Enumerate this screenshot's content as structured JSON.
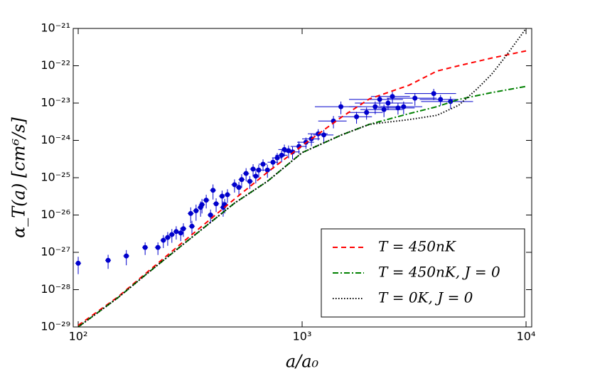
{
  "chart_data": {
    "type": "scatter",
    "xlabel": "a/a₀",
    "ylabel": "α_T(a) [cm⁶/s]",
    "xscale": "log",
    "yscale": "log",
    "xlim": [
      95,
      10600
    ],
    "ylim": [
      1e-29,
      1e-21
    ],
    "xticks": [
      {
        "value": 100,
        "label": "10²"
      },
      {
        "value": 1000,
        "label": "10³"
      },
      {
        "value": 10000,
        "label": "10⁴"
      }
    ],
    "yticks": [
      {
        "value": 1e-29,
        "label": "10⁻²⁹"
      },
      {
        "value": 1e-28,
        "label": "10⁻²⁸"
      },
      {
        "value": 1e-27,
        "label": "10⁻²⁷"
      },
      {
        "value": 1e-26,
        "label": "10⁻²⁶"
      },
      {
        "value": 1e-25,
        "label": "10⁻²⁵"
      },
      {
        "value": 1e-24,
        "label": "10⁻²⁴"
      },
      {
        "value": 1e-23,
        "label": "10⁻²³"
      },
      {
        "value": 1e-22,
        "label": "10⁻²²"
      },
      {
        "value": 1e-21,
        "label": "10⁻²¹"
      }
    ],
    "legend": "lower right",
    "series": [
      {
        "type": "scatter",
        "color": "#0000cc",
        "x": [
          100,
          136,
          164,
          199,
          227,
          240,
          251,
          262,
          274,
          287,
          295,
          318,
          322,
          336,
          352,
          357,
          373,
          390,
          400,
          413,
          439,
          444,
          451,
          464,
          499,
          522,
          537,
          562,
          584,
          604,
          621,
          640,
          669,
          700,
          741,
          774,
          810,
          833,
          870,
          906,
          968,
          1040,
          1100,
          1180,
          1250,
          1380,
          1490,
          1750,
          1940,
          2120,
          2220,
          2320,
          2420,
          2530,
          2680,
          2840,
          3190,
          3870,
          4150,
          4600
        ],
        "values": [
          5.1e-28,
          6.1e-28,
          8e-28,
          1.35e-27,
          1.35e-27,
          2.1e-27,
          2.5e-27,
          3e-27,
          3.6e-27,
          3.3e-27,
          4.3e-27,
          1.1e-26,
          5e-27,
          1.3e-26,
          1.6e-26,
          1.9e-26,
          2.5e-26,
          1e-26,
          4.6e-26,
          2e-26,
          3.2e-26,
          1.6e-26,
          1.9e-26,
          3.5e-26,
          6.5e-26,
          5.5e-26,
          8.9e-26,
          1.3e-25,
          8e-26,
          1.7e-25,
          1.1e-25,
          1.6e-25,
          2.3e-25,
          1.6e-25,
          2.6e-25,
          3.4e-25,
          4e-25,
          5.7e-25,
          5.3e-25,
          4.9e-25,
          6.9e-25,
          8.9e-25,
          1.1e-24,
          1.5e-24,
          1.4e-24,
          3.3e-24,
          8e-24,
          4.3e-24,
          5.6e-24,
          8e-24,
          1.25e-23,
          6.7e-24,
          1e-23,
          1.5e-23,
          7.4e-24,
          8e-24,
          1.35e-23,
          1.8e-23,
          1.25e-23,
          1.1e-23
        ],
        "xerr": [
          3,
          4,
          5,
          6,
          7,
          7,
          8,
          8,
          8,
          9,
          9,
          10,
          10,
          10,
          11,
          11,
          12,
          12,
          12,
          13,
          14,
          14,
          14,
          15,
          16,
          17,
          17,
          18,
          19,
          20,
          20,
          25,
          30,
          30,
          40,
          40,
          50,
          50,
          60,
          70,
          80,
          90,
          100,
          120,
          130,
          200,
          350,
          300,
          350,
          500,
          600,
          500,
          700,
          500,
          500,
          600,
          800,
          1000,
          800,
          1200
        ],
        "yerr": [
          2.5e-28,
          2.5e-28,
          3.5e-28,
          5e-28,
          5e-28,
          8e-28,
          1e-27,
          1.2e-27,
          1.4e-27,
          1.3e-27,
          1.7e-27,
          5e-27,
          2e-27,
          6e-27,
          7e-27,
          8e-27,
          1e-26,
          4e-27,
          2e-26,
          8e-27,
          1.3e-26,
          7e-27,
          8e-27,
          1.4e-26,
          2.5e-26,
          2.2e-26,
          3.5e-26,
          5e-26,
          3e-26,
          6e-26,
          4e-26,
          6e-26,
          8e-26,
          6e-26,
          9e-26,
          1.2e-25,
          1.4e-25,
          2e-25,
          2e-25,
          1.8e-25,
          2.5e-25,
          3e-25,
          4e-25,
          5e-25,
          5e-25,
          1.2e-24,
          3e-24,
          1.5e-24,
          2e-24,
          3e-24,
          4e-24,
          2.5e-24,
          3.5e-24,
          5e-24,
          2.5e-24,
          3e-24,
          5e-24,
          6e-24,
          4e-24,
          4e-24
        ]
      },
      {
        "type": "line",
        "name": "T = 450nK",
        "color": "#ff0000",
        "linestyle": "dashed",
        "x": [
          100,
          150,
          200,
          300,
          500,
          700,
          1000,
          1500,
          2000,
          3000,
          4000,
          5000,
          7000,
          10000
        ],
        "values": [
          1.1e-29,
          6.3e-29,
          2.7e-28,
          2.1e-27,
          2.7e-26,
          1.4e-25,
          7.2e-25,
          4.2e-24,
          1.3e-23,
          3e-23,
          7.2e-23,
          1e-22,
          1.6e-22,
          2.5e-22
        ]
      },
      {
        "type": "line",
        "name": "T = 450nK,  J = 0",
        "color": "#008000",
        "linestyle": "dashdot",
        "x": [
          100,
          150,
          200,
          300,
          500,
          700,
          1000,
          1500,
          2000,
          3000,
          4000,
          5000,
          7000,
          10000
        ],
        "values": [
          1e-29,
          6e-29,
          2.5e-28,
          1.8e-27,
          2.1e-26,
          8e-26,
          4.7e-25,
          1.4e-24,
          2.7e-24,
          5.2e-24,
          8e-24,
          1.25e-23,
          1.9e-23,
          2.8e-23
        ]
      },
      {
        "type": "line",
        "name": "T = 0K,  J = 0",
        "color": "#000000",
        "linestyle": "dotted",
        "x": [
          100,
          150,
          200,
          300,
          500,
          700,
          1000,
          1500,
          2000,
          3000,
          4000,
          5000,
          6000,
          7000,
          8000,
          10000
        ],
        "values": [
          1e-29,
          6e-29,
          2.5e-28,
          1.8e-27,
          2.1e-26,
          8e-26,
          4.7e-25,
          1.4e-24,
          2.7e-24,
          3.6e-24,
          4.7e-24,
          8.7e-24,
          2.3e-23,
          5.8e-23,
          1.6e-22,
          1e-21
        ]
      }
    ]
  }
}
